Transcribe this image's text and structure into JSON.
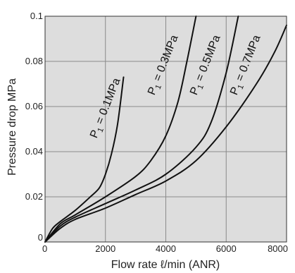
{
  "chart_data": {
    "type": "line",
    "xlabel": "Flow rate ℓ/min (ANR)",
    "ylabel": "Pressure drop  MPa",
    "xlim": [
      0,
      8000
    ],
    "ylim": [
      0,
      0.1
    ],
    "x_ticks": [
      "0",
      "2000",
      "4000",
      "6000",
      "8000"
    ],
    "y_ticks": [
      "0",
      "0.02",
      "0.04",
      "0.06",
      "0.08",
      "0.1"
    ],
    "grid": true,
    "background_color": "#dddddd",
    "line_color": "#111111",
    "series": [
      {
        "name": "P1 = 0.1MPa",
        "x": [
          0,
          250,
          500,
          1000,
          1500,
          1800,
          2000,
          2200,
          2400,
          2600
        ],
        "y": [
          0,
          0.006,
          0.009,
          0.014,
          0.02,
          0.024,
          0.03,
          0.039,
          0.052,
          0.073
        ]
      },
      {
        "name": "P1 = 0.3MPa",
        "x": [
          0,
          500,
          1000,
          2000,
          3000,
          3500,
          4000,
          4400,
          4700,
          5000
        ],
        "y": [
          0,
          0.008,
          0.012,
          0.02,
          0.029,
          0.036,
          0.047,
          0.062,
          0.08,
          0.1
        ]
      },
      {
        "name": "P1 = 0.5MPa",
        "x": [
          0,
          500,
          1000,
          2000,
          3000,
          4000,
          5000,
          5500,
          6000,
          6400
        ],
        "y": [
          0,
          0.007,
          0.011,
          0.017,
          0.023,
          0.03,
          0.042,
          0.053,
          0.075,
          0.1
        ]
      },
      {
        "name": "P1 = 0.7MPa",
        "x": [
          0,
          500,
          1000,
          2000,
          3000,
          4000,
          5000,
          6000,
          7000,
          7600,
          8000
        ],
        "y": [
          0,
          0.006,
          0.01,
          0.015,
          0.021,
          0.027,
          0.036,
          0.051,
          0.07,
          0.084,
          0.096
        ]
      }
    ]
  }
}
